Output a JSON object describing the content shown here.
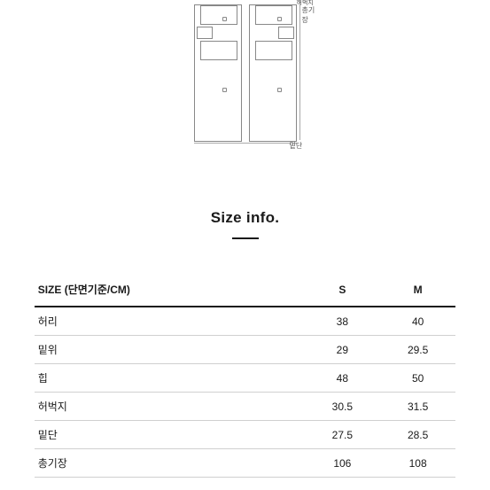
{
  "diagram": {
    "label_top": "허벅지",
    "label_right": "총기장",
    "label_bottom": "밑단",
    "stroke": "#888888",
    "background": "#ffffff"
  },
  "title": "Size info.",
  "table": {
    "header_label": "SIZE (단면기준/CM)",
    "columns": [
      "S",
      "M"
    ],
    "rows": [
      {
        "label": "허리",
        "values": [
          "38",
          "40"
        ]
      },
      {
        "label": "밑위",
        "values": [
          "29",
          "29.5"
        ]
      },
      {
        "label": "힙",
        "values": [
          "48",
          "50"
        ]
      },
      {
        "label": "허벅지",
        "values": [
          "30.5",
          "31.5"
        ]
      },
      {
        "label": "밑단",
        "values": [
          "27.5",
          "28.5"
        ]
      },
      {
        "label": "총기장",
        "values": [
          "106",
          "108"
        ]
      }
    ],
    "border_color": "#1a1a1a",
    "row_border_color": "#d0d0d0",
    "font_size_header": 12,
    "font_size_cell": 12
  },
  "colors": {
    "text": "#1a1a1a",
    "bg": "#ffffff"
  }
}
